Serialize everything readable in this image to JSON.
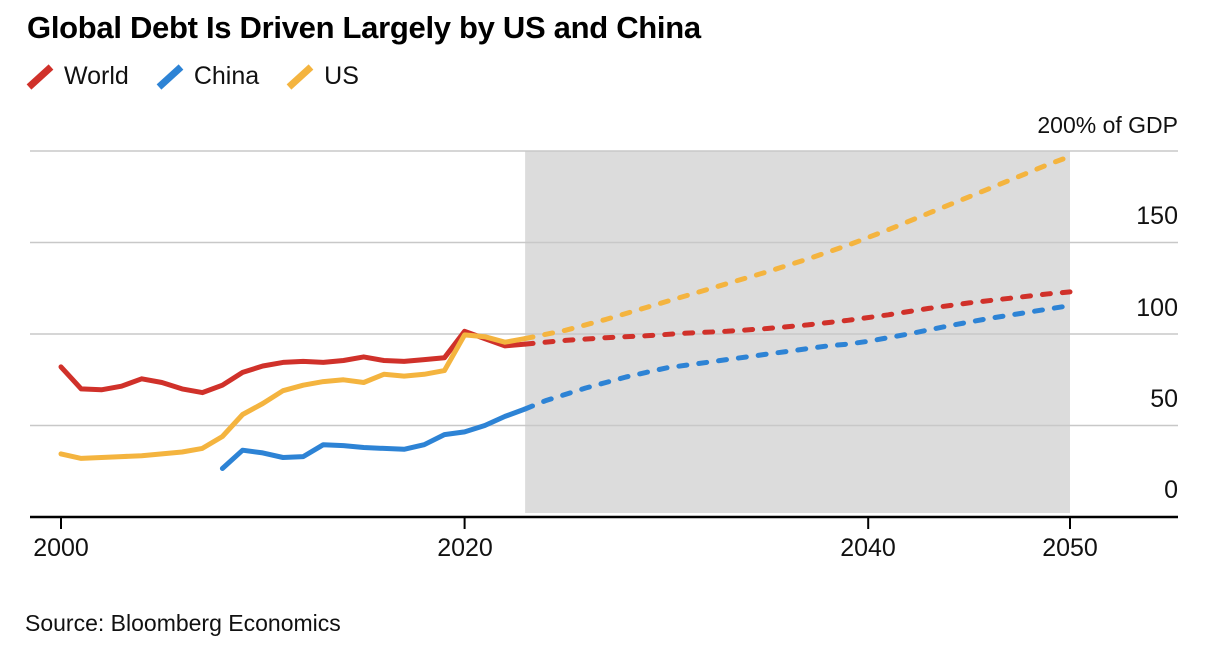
{
  "header": {
    "title": "Global Debt Is Driven Largely by US and China"
  },
  "legend": {
    "items": [
      {
        "label": "World",
        "color": "#d0312a"
      },
      {
        "label": "China",
        "color": "#2d83d5"
      },
      {
        "label": "US",
        "color": "#f4b43f"
      }
    ]
  },
  "axis": {
    "y_top_label": "200% of GDP",
    "y_tick_labels": [
      "150",
      "100",
      "50",
      "0"
    ],
    "x_tick_labels": [
      "2000",
      "2020",
      "2040",
      "2050"
    ]
  },
  "source": "Source: Bloomberg Economics",
  "chart_data": {
    "type": "line",
    "title": "Global Debt Is Driven Largely by US and China",
    "ylabel": "% of GDP",
    "ylim": [
      0,
      200
    ],
    "y_tick_values": [
      0,
      50,
      100,
      150,
      200
    ],
    "x_tick_years": [
      2000,
      2020,
      2040,
      2050
    ],
    "grid": "horizontal",
    "legend_position": "top-left",
    "forecast_band": {
      "start_year": 2023,
      "end_year": 2050,
      "color": "#dcdcdc"
    },
    "series": [
      {
        "name": "World",
        "color": "#d0312a",
        "style_history": "solid",
        "style_forecast": "dashed",
        "history": [
          [
            2000,
            82
          ],
          [
            2001,
            70
          ],
          [
            2002,
            69.5
          ],
          [
            2003,
            71.5
          ],
          [
            2004,
            75.5
          ],
          [
            2005,
            73.5
          ],
          [
            2006,
            70
          ],
          [
            2007,
            68
          ],
          [
            2008,
            72
          ],
          [
            2009,
            79
          ],
          [
            2010,
            82.5
          ],
          [
            2011,
            84.5
          ],
          [
            2012,
            85
          ],
          [
            2013,
            84.5
          ],
          [
            2014,
            85.5
          ],
          [
            2015,
            87.5
          ],
          [
            2016,
            85.5
          ],
          [
            2017,
            85
          ],
          [
            2018,
            86
          ],
          [
            2019,
            87
          ],
          [
            2020,
            101.5
          ],
          [
            2021,
            97.5
          ],
          [
            2022,
            93.5
          ],
          [
            2023,
            94.5
          ]
        ],
        "forecast": [
          [
            2023,
            94.5
          ],
          [
            2025,
            96.5
          ],
          [
            2027,
            98
          ],
          [
            2029,
            99
          ],
          [
            2031,
            100.5
          ],
          [
            2033,
            101.5
          ],
          [
            2035,
            103
          ],
          [
            2037,
            105
          ],
          [
            2039,
            107.5
          ],
          [
            2041,
            110.5
          ],
          [
            2043,
            114
          ],
          [
            2045,
            117
          ],
          [
            2047,
            119.5
          ],
          [
            2049,
            122
          ],
          [
            2050,
            123
          ]
        ]
      },
      {
        "name": "China",
        "color": "#2d83d5",
        "style_history": "solid",
        "style_forecast": "dashed",
        "history": [
          [
            2008,
            26.5
          ],
          [
            2009,
            36.5
          ],
          [
            2010,
            35
          ],
          [
            2011,
            32.5
          ],
          [
            2012,
            33
          ],
          [
            2013,
            39.5
          ],
          [
            2014,
            39
          ],
          [
            2015,
            38
          ],
          [
            2016,
            37.5
          ],
          [
            2017,
            37
          ],
          [
            2018,
            39.5
          ],
          [
            2019,
            45
          ],
          [
            2020,
            46.5
          ],
          [
            2021,
            50
          ],
          [
            2022,
            55
          ],
          [
            2023,
            59
          ]
        ],
        "forecast": [
          [
            2023,
            59
          ],
          [
            2024,
            63.5
          ],
          [
            2025,
            67
          ],
          [
            2026,
            70.5
          ],
          [
            2027,
            73.5
          ],
          [
            2028,
            76.5
          ],
          [
            2029,
            79
          ],
          [
            2030,
            81.5
          ],
          [
            2031,
            83
          ],
          [
            2032,
            84.5
          ],
          [
            2033,
            86
          ],
          [
            2034,
            87.5
          ],
          [
            2035,
            89
          ],
          [
            2036,
            90.5
          ],
          [
            2037,
            92
          ],
          [
            2038,
            93.5
          ],
          [
            2039,
            94.5
          ],
          [
            2040,
            96
          ],
          [
            2042,
            100
          ],
          [
            2044,
            104.5
          ],
          [
            2046,
            108.5
          ],
          [
            2048,
            112
          ],
          [
            2050,
            115.5
          ]
        ]
      },
      {
        "name": "US",
        "color": "#f4b43f",
        "style_history": "solid",
        "style_forecast": "dashed",
        "history": [
          [
            2000,
            34.5
          ],
          [
            2001,
            32
          ],
          [
            2002,
            32.5
          ],
          [
            2003,
            33
          ],
          [
            2004,
            33.5
          ],
          [
            2005,
            34.5
          ],
          [
            2006,
            35.5
          ],
          [
            2007,
            37.5
          ],
          [
            2008,
            44
          ],
          [
            2009,
            56
          ],
          [
            2010,
            62
          ],
          [
            2011,
            69
          ],
          [
            2012,
            72
          ],
          [
            2013,
            74
          ],
          [
            2014,
            75
          ],
          [
            2015,
            73.5
          ],
          [
            2016,
            78
          ],
          [
            2017,
            77
          ],
          [
            2018,
            78
          ],
          [
            2019,
            80
          ],
          [
            2020,
            99.5
          ],
          [
            2021,
            98.5
          ],
          [
            2022,
            95.5
          ],
          [
            2023,
            97.5
          ]
        ],
        "forecast": [
          [
            2023,
            97.5
          ],
          [
            2025,
            102
          ],
          [
            2027,
            108
          ],
          [
            2029,
            114.5
          ],
          [
            2031,
            121
          ],
          [
            2033,
            127.5
          ],
          [
            2035,
            134
          ],
          [
            2037,
            141
          ],
          [
            2039,
            148.5
          ],
          [
            2041,
            157
          ],
          [
            2043,
            166
          ],
          [
            2045,
            175
          ],
          [
            2047,
            184
          ],
          [
            2049,
            193
          ],
          [
            2050,
            197
          ]
        ]
      }
    ]
  }
}
